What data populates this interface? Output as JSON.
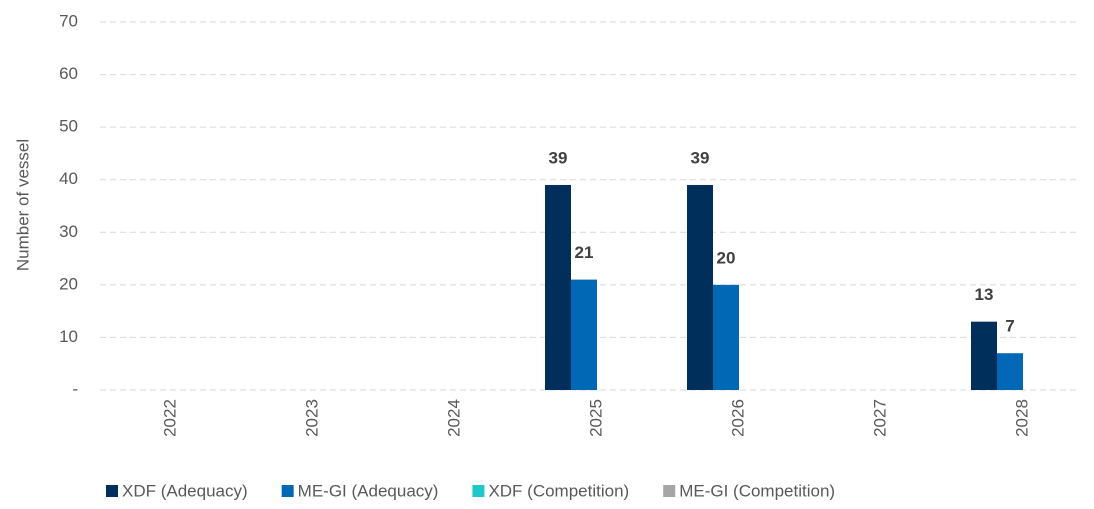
{
  "chart_data": {
    "type": "bar",
    "y_label": "Number of vessel",
    "categories": [
      "2022",
      "2023",
      "2024",
      "2025",
      "2026",
      "2027",
      "2028"
    ],
    "series": [
      {
        "name": "XDF (Adequacy)",
        "color": "#002f5c",
        "values": [
          0,
          0,
          0,
          39,
          39,
          0,
          13
        ]
      },
      {
        "name": "ME-GI (Adequacy)",
        "color": "#0068b4",
        "values": [
          0,
          0,
          0,
          21,
          20,
          0,
          7
        ]
      },
      {
        "name": "XDF (Competition)",
        "color": "#1ec8c8",
        "values": [
          0,
          0,
          0,
          0,
          0,
          0,
          0
        ]
      },
      {
        "name": "ME-GI (Competition)",
        "color": "#a6a6a6",
        "values": [
          0,
          0,
          0,
          0,
          0,
          0,
          0
        ]
      }
    ],
    "ylim": [
      0,
      70
    ],
    "yticks": [
      {
        "value": 0,
        "label": "-"
      },
      10,
      20,
      30,
      40,
      50,
      60,
      70
    ],
    "grid": true,
    "legend": "bottom"
  }
}
